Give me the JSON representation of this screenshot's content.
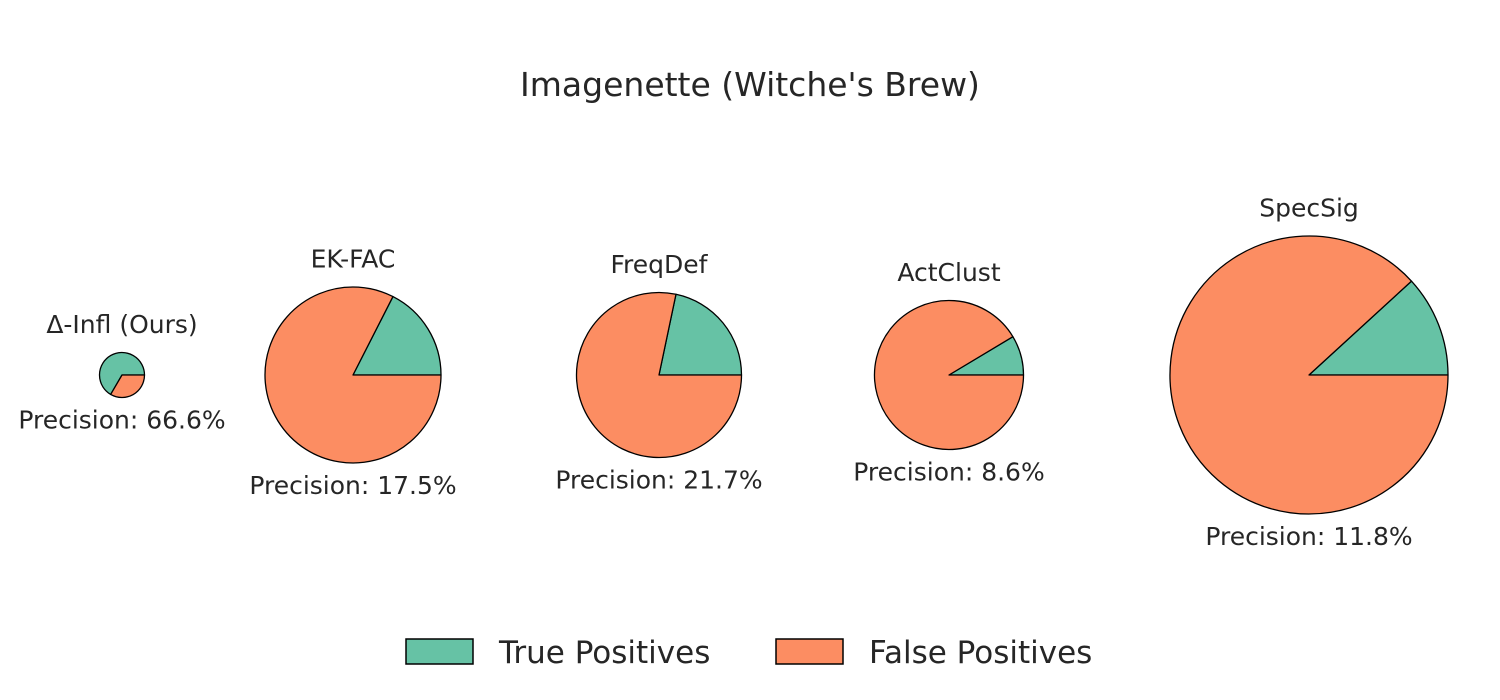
{
  "chart_data": {
    "type": "pie",
    "title": "Imagenette (Witche's Brew)",
    "colors": {
      "true_positives": "#66c2a5",
      "false_positives": "#fc8d62",
      "edge": "#000000"
    },
    "legend": {
      "placement": "bottom-center",
      "items": [
        {
          "label": "True Positives",
          "color": "#66c2a5"
        },
        {
          "label": "False Positives",
          "color": "#fc8d62"
        }
      ]
    },
    "methods": [
      {
        "name": "Δ-Infl (Ours)",
        "precision": 66.6,
        "precision_label": "Precision: 66.6%"
      },
      {
        "name": "EK-FAC",
        "precision": 17.5,
        "precision_label": "Precision: 17.5%"
      },
      {
        "name": "FreqDef",
        "precision": 21.7,
        "precision_label": "Precision: 21.7%"
      },
      {
        "name": "ActClust",
        "precision": 8.6,
        "precision_label": "Precision: 8.6%"
      },
      {
        "name": "SpecSig",
        "precision": 11.8,
        "precision_label": "Precision: 11.8%"
      }
    ]
  }
}
